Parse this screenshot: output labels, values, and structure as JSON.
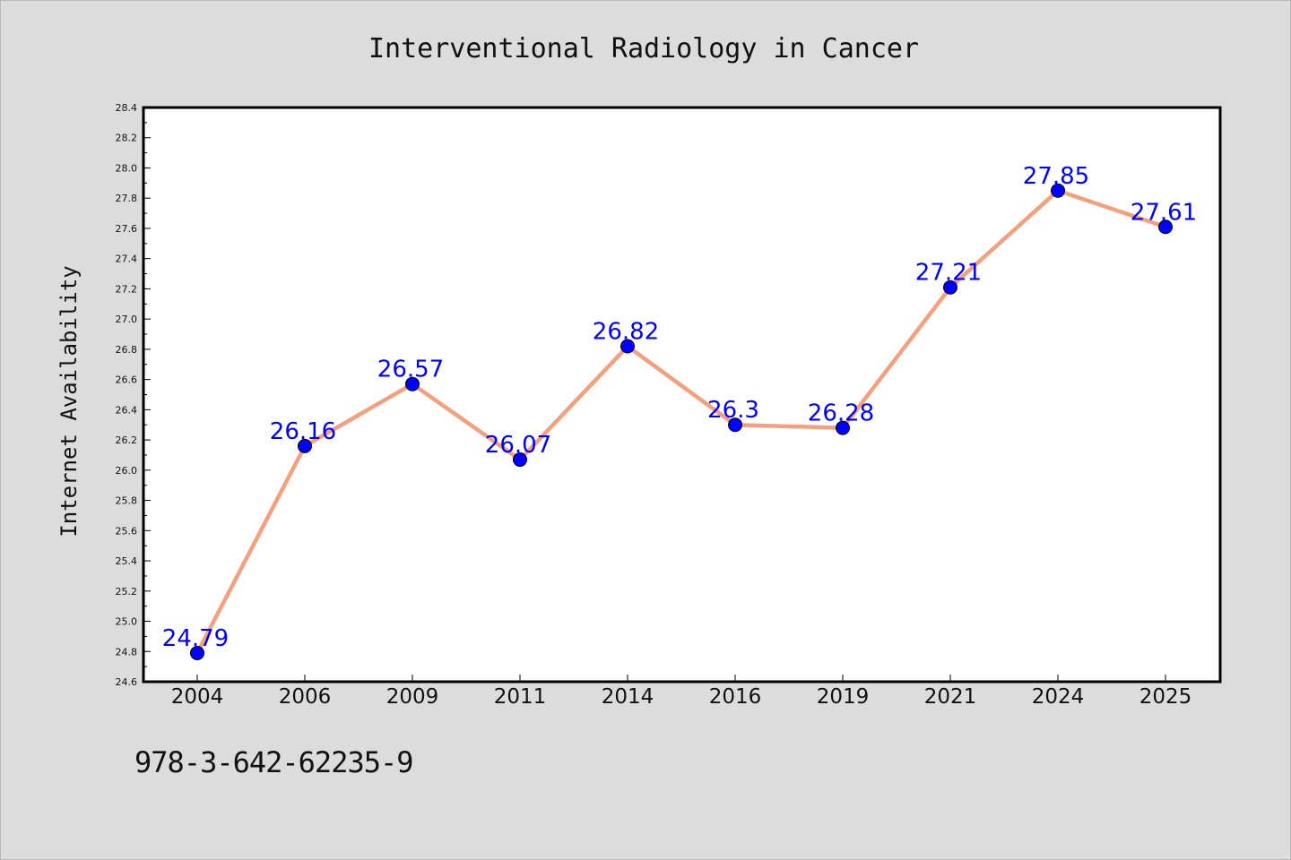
{
  "chart_data": {
    "type": "line",
    "title": "Interventional Radiology in Cancer",
    "xlabel": "",
    "ylabel": "Internet Availability",
    "categories": [
      "2004",
      "2006",
      "2009",
      "2011",
      "2014",
      "2016",
      "2019",
      "2021",
      "2024",
      "2025"
    ],
    "values": [
      24.79,
      26.16,
      26.57,
      26.07,
      26.82,
      26.3,
      26.28,
      27.21,
      27.85,
      27.61
    ],
    "data_labels": [
      "24.79",
      "26.16",
      "26.57",
      "26.07",
      "26.82",
      "26.3",
      "26.28",
      "27.21",
      "27.85",
      "27.61"
    ],
    "ylim": [
      24.6,
      28.4
    ],
    "yticks": [
      "24.6",
      "24.8",
      "25.0",
      "25.2",
      "25.4",
      "25.6",
      "25.8",
      "26.0",
      "26.2",
      "26.4",
      "26.6",
      "26.8",
      "27.0",
      "27.2",
      "27.4",
      "27.6",
      "27.8",
      "28.0",
      "28.2",
      "28.4"
    ],
    "grid": false,
    "legend": "none",
    "colors": {
      "line": "#f4a07e",
      "marker": "#0000ff",
      "label": "#0000ff",
      "plot_background": "#ffffff",
      "page_background": "#dcdcdc"
    }
  },
  "footer": {
    "isbn": "978-3-642-62235-9"
  }
}
